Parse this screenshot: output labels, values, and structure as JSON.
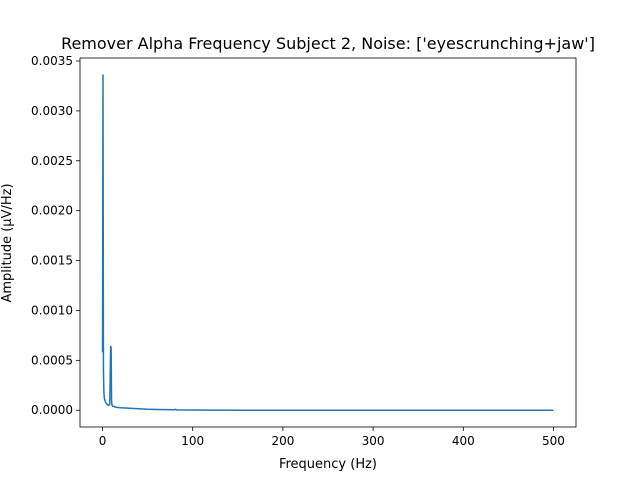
{
  "chart_data": {
    "type": "line",
    "title": "Remover Alpha Frequency Subject 2, Noise: ['eyescrunching+jaw']",
    "xlabel": "Frequency (Hz)",
    "ylabel": "Amplitude (µV/Hz)",
    "xlim": [
      -25,
      525
    ],
    "ylim": [
      -0.000168,
      0.00353
    ],
    "x_ticks": [
      0,
      100,
      200,
      300,
      400,
      500
    ],
    "x_tick_labels": [
      "0",
      "100",
      "200",
      "300",
      "400",
      "500"
    ],
    "y_ticks": [
      0,
      0.0005,
      0.001,
      0.0015,
      0.002,
      0.0025,
      0.003,
      0.0035
    ],
    "y_tick_labels": [
      "0.0000",
      "0.0005",
      "0.0010",
      "0.0015",
      "0.0020",
      "0.0025",
      "0.0030",
      "0.0035"
    ],
    "grid": false,
    "series": [
      {
        "color": "#1f77b4",
        "x": [
          0,
          0.5,
          1,
          1.5,
          2,
          3,
          4,
          5,
          6,
          7,
          8,
          9,
          9.5,
          10,
          10.5,
          11,
          12,
          15,
          20,
          30,
          40,
          50,
          60,
          80,
          81,
          82,
          100,
          120,
          140,
          150,
          200,
          250,
          300,
          350,
          400,
          450,
          500
        ],
        "y": [
          0.00058,
          0.00336,
          0.0004,
          0.00018,
          0.00012,
          9e-05,
          7e-05,
          6e-05,
          5e-05,
          5e-05,
          6e-05,
          0.00064,
          0.00063,
          0.0001,
          5e-05,
          4e-05,
          4e-05,
          3e-05,
          2.5e-05,
          2e-05,
          1.5e-05,
          1e-05,
          8e-06,
          5e-06,
          1e-05,
          4e-06,
          2e-06,
          1e-06,
          1e-06,
          5e-07,
          3e-07,
          2e-07,
          2e-07,
          1e-07,
          1e-07,
          1e-07,
          1e-07
        ]
      }
    ]
  }
}
